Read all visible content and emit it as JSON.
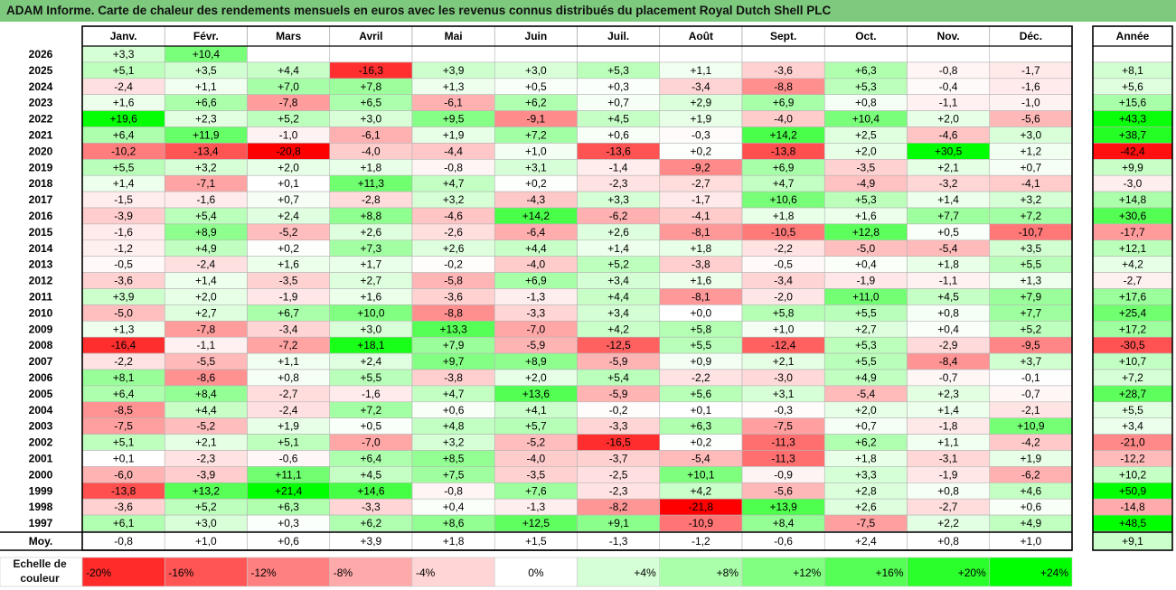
{
  "title": "ADAM Informe. Carte de chaleur des rendements mensuels en euros avec les revenus connus distribués du placement Royal Dutch Shell PLC",
  "colors": {
    "title_bg": "#7DC97D",
    "negative_max": "#FF0000",
    "positive_max": "#00FF00",
    "neutral": "#FFFFFF"
  },
  "chart_data": {
    "type": "heatmap",
    "months": [
      "Janv.",
      "Févr.",
      "Mars",
      "Avril",
      "Mai",
      "Juin",
      "Juil.",
      "Août",
      "Sept.",
      "Oct.",
      "Nov.",
      "Déc."
    ],
    "year_header": "Année",
    "rows": [
      {
        "year": "2026",
        "values": [
          "+3,3",
          "+10,4",
          null,
          null,
          null,
          null,
          null,
          null,
          null,
          null,
          null,
          null
        ],
        "annual": null
      },
      {
        "year": "2025",
        "values": [
          "+5,1",
          "+3,5",
          "+4,4",
          "-16,3",
          "+3,9",
          "+3,0",
          "+5,3",
          "+1,1",
          "-3,6",
          "+6,3",
          "-0,8",
          "-1,7"
        ],
        "annual": "+8,1"
      },
      {
        "year": "2024",
        "values": [
          "-2,4",
          "+1,1",
          "+7,0",
          "+7,8",
          "+1,3",
          "+0,5",
          "+0,3",
          "-3,4",
          "-8,8",
          "+5,3",
          "-0,4",
          "-1,6"
        ],
        "annual": "+5,6"
      },
      {
        "year": "2023",
        "values": [
          "+1,6",
          "+6,6",
          "-7,8",
          "+6,5",
          "-6,1",
          "+6,2",
          "+0,7",
          "+2,9",
          "+6,9",
          "+0,8",
          "-1,1",
          "-1,0"
        ],
        "annual": "+15,6"
      },
      {
        "year": "2022",
        "values": [
          "+19,6",
          "+2,3",
          "+5,2",
          "+3,0",
          "+9,5",
          "-9,1",
          "+4,5",
          "+1,9",
          "-4,0",
          "+10,4",
          "+2,0",
          "-5,6"
        ],
        "annual": "+43,3"
      },
      {
        "year": "2021",
        "values": [
          "+6,4",
          "+11,9",
          "-1,0",
          "-6,1",
          "+1,9",
          "+7,2",
          "+0,6",
          "-0,3",
          "+14,2",
          "+2,5",
          "-4,6",
          "+3,0"
        ],
        "annual": "+38,7"
      },
      {
        "year": "2020",
        "values": [
          "-10,2",
          "-13,4",
          "-20,8",
          "-4,0",
          "-4,4",
          "+1,0",
          "-13,6",
          "+0,2",
          "-13,8",
          "+2,0",
          "+30,5",
          "+1,2"
        ],
        "annual": "-42,4"
      },
      {
        "year": "2019",
        "values": [
          "+5,5",
          "+3,2",
          "+2,0",
          "+1,8",
          "-0,8",
          "+3,1",
          "-1,4",
          "-9,2",
          "+6,9",
          "-3,5",
          "+2,1",
          "+0,7"
        ],
        "annual": "+9,9"
      },
      {
        "year": "2018",
        "values": [
          "+1,4",
          "-7,1",
          "+0,1",
          "+11,3",
          "+4,7",
          "+0,2",
          "-2,3",
          "-2,7",
          "+4,7",
          "-4,9",
          "-3,2",
          "-4,1"
        ],
        "annual": "-3,0"
      },
      {
        "year": "2017",
        "values": [
          "-1,5",
          "-1,6",
          "+0,7",
          "-2,8",
          "+3,2",
          "-4,3",
          "+3,3",
          "-1,7",
          "+10,6",
          "+5,3",
          "+1,4",
          "+3,2"
        ],
        "annual": "+14,8"
      },
      {
        "year": "2016",
        "values": [
          "-3,9",
          "+5,4",
          "+2,4",
          "+8,8",
          "-4,6",
          "+14,2",
          "-6,2",
          "-4,1",
          "+1,8",
          "+1,6",
          "+7,7",
          "+7,2"
        ],
        "annual": "+30,6"
      },
      {
        "year": "2015",
        "values": [
          "-1,6",
          "+8,9",
          "-5,2",
          "+2,6",
          "-2,6",
          "-6,4",
          "+2,6",
          "-8,1",
          "-10,5",
          "+12,8",
          "+0,5",
          "-10,7"
        ],
        "annual": "-17,7"
      },
      {
        "year": "2014",
        "values": [
          "-1,2",
          "+4,9",
          "+0,2",
          "+7,3",
          "+2,6",
          "+4,4",
          "+1,4",
          "+1,8",
          "-2,2",
          "-5,0",
          "-5,4",
          "+3,5"
        ],
        "annual": "+12,1"
      },
      {
        "year": "2013",
        "values": [
          "-0,5",
          "-2,4",
          "+1,6",
          "+1,7",
          "-0,2",
          "-4,0",
          "+5,2",
          "-3,8",
          "-0,5",
          "+0,4",
          "+1,8",
          "+5,5"
        ],
        "annual": "+4,2"
      },
      {
        "year": "2012",
        "values": [
          "-3,6",
          "+1,4",
          "-3,5",
          "+2,7",
          "-5,8",
          "+6,9",
          "+3,4",
          "+1,6",
          "-3,4",
          "-1,9",
          "-1,1",
          "+1,3"
        ],
        "annual": "-2,7"
      },
      {
        "year": "2011",
        "values": [
          "+3,9",
          "+2,0",
          "-1,9",
          "+1,6",
          "-3,6",
          "-1,3",
          "+4,4",
          "-8,1",
          "-2,0",
          "+11,0",
          "+4,5",
          "+7,9"
        ],
        "annual": "+17,6"
      },
      {
        "year": "2010",
        "values": [
          "-5,0",
          "+2,7",
          "+6,7",
          "+10,0",
          "-8,8",
          "-3,3",
          "+3,4",
          "+0,0",
          "+5,8",
          "+5,5",
          "+0,8",
          "+7,7"
        ],
        "annual": "+25,4"
      },
      {
        "year": "2009",
        "values": [
          "+1,3",
          "-7,8",
          "-3,4",
          "+3,0",
          "+13,3",
          "-7,0",
          "+4,2",
          "+5,8",
          "+1,0",
          "+2,7",
          "+0,4",
          "+5,2"
        ],
        "annual": "+17,2"
      },
      {
        "year": "2008",
        "values": [
          "-16,4",
          "-1,1",
          "-7,2",
          "+18,1",
          "+7,9",
          "-5,9",
          "-12,5",
          "+5,5",
          "-12,4",
          "+5,3",
          "-2,9",
          "-9,5"
        ],
        "annual": "-30,5"
      },
      {
        "year": "2007",
        "values": [
          "-2,2",
          "-5,5",
          "+1,1",
          "+2,4",
          "+9,7",
          "+8,9",
          "-5,9",
          "+0,9",
          "+2,1",
          "+5,5",
          "-8,4",
          "+3,7"
        ],
        "annual": "+10,7"
      },
      {
        "year": "2006",
        "values": [
          "+8,1",
          "-8,6",
          "+0,8",
          "+5,5",
          "-3,8",
          "+2,0",
          "+5,4",
          "-2,2",
          "-3,0",
          "+4,9",
          "-0,7",
          "-0,1"
        ],
        "annual": "+7,2"
      },
      {
        "year": "2005",
        "values": [
          "+6,4",
          "+8,4",
          "-2,7",
          "-1,6",
          "+4,7",
          "+13,6",
          "-5,9",
          "+5,6",
          "+3,1",
          "-5,4",
          "+2,3",
          "-0,7"
        ],
        "annual": "+28,7"
      },
      {
        "year": "2004",
        "values": [
          "-8,5",
          "+4,4",
          "-2,4",
          "+7,2",
          "+0,6",
          "+4,1",
          "-0,2",
          "+0,1",
          "-0,3",
          "+2,0",
          "+1,4",
          "-2,1"
        ],
        "annual": "+5,5"
      },
      {
        "year": "2003",
        "values": [
          "-7,5",
          "-5,2",
          "+1,9",
          "+0,5",
          "+4,8",
          "+5,7",
          "-3,3",
          "+6,3",
          "-7,5",
          "+0,7",
          "-1,8",
          "+10,9"
        ],
        "annual": "+3,4"
      },
      {
        "year": "2002",
        "values": [
          "+5,1",
          "+2,1",
          "+5,1",
          "-7,0",
          "+3,2",
          "-5,2",
          "-16,5",
          "+0,2",
          "-11,3",
          "+6,2",
          "+1,1",
          "-4,2"
        ],
        "annual": "-21,0"
      },
      {
        "year": "2001",
        "values": [
          "+0,1",
          "-2,3",
          "-0,6",
          "+6,4",
          "+8,5",
          "-4,0",
          "-3,7",
          "-5,4",
          "-11,3",
          "+1,8",
          "-3,1",
          "+1,9"
        ],
        "annual": "-12,2"
      },
      {
        "year": "2000",
        "values": [
          "-6,0",
          "-3,9",
          "+11,1",
          "+4,5",
          "+7,5",
          "-3,5",
          "-2,5",
          "+10,1",
          "-0,9",
          "+3,3",
          "-1,9",
          "-6,2"
        ],
        "annual": "+10,2"
      },
      {
        "year": "1999",
        "values": [
          "-13,8",
          "+13,2",
          "+21,4",
          "+14,6",
          "-0,8",
          "+7,6",
          "-2,3",
          "+4,2",
          "-5,6",
          "+2,8",
          "+0,8",
          "+4,6"
        ],
        "annual": "+50,9"
      },
      {
        "year": "1998",
        "values": [
          "-3,6",
          "+5,2",
          "+6,3",
          "-3,3",
          "+0,4",
          "-1,3",
          "-8,2",
          "-21,8",
          "+13,9",
          "+2,6",
          "-2,7",
          "+0,6"
        ],
        "annual": "-14,8"
      },
      {
        "year": "1997",
        "values": [
          "+6,1",
          "+3,0",
          "+0,3",
          "+6,2",
          "+8,6",
          "+12,5",
          "+9,1",
          "-10,9",
          "+8,4",
          "-7,5",
          "+2,2",
          "+4,9"
        ],
        "annual": "+48,5"
      }
    ],
    "average": {
      "label": "Moy.",
      "values": [
        "-0,8",
        "+1,0",
        "+0,6",
        "+3,9",
        "+1,8",
        "+1,5",
        "-1,3",
        "-1,2",
        "-0,6",
        "+2,4",
        "+0,8",
        "+1,0"
      ],
      "annual": "+9,1"
    },
    "scale": {
      "label": "Echelle de couleur",
      "steps": [
        {
          "label": "-20%",
          "value": -20
        },
        {
          "label": "-16%",
          "value": -16
        },
        {
          "label": "-12%",
          "value": -12
        },
        {
          "label": "-8%",
          "value": -8
        },
        {
          "label": "-4%",
          "value": -4
        },
        {
          "label": "0%",
          "value": 0
        },
        {
          "label": "+4%",
          "value": 4
        },
        {
          "label": "+8%",
          "value": 8
        },
        {
          "label": "+12%",
          "value": 12
        },
        {
          "label": "+16%",
          "value": 16
        },
        {
          "label": "+20%",
          "value": 20
        },
        {
          "label": "+24%",
          "value": 24
        }
      ]
    }
  }
}
